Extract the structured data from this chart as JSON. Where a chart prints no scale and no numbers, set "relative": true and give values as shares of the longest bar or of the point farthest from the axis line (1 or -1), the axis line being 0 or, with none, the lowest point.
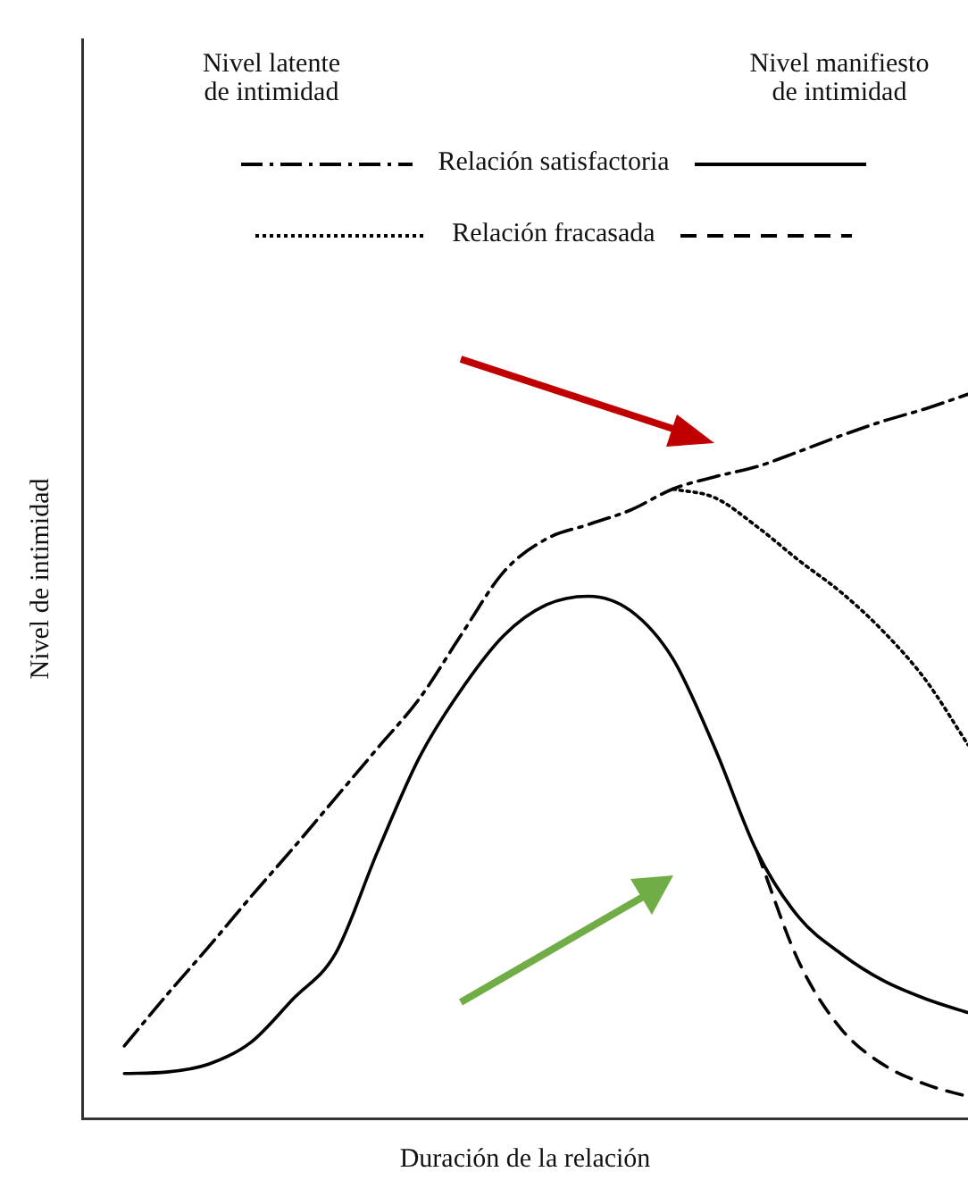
{
  "chart_data": {
    "type": "line",
    "xlabel": "Duración de la relación",
    "ylabel": "Nivel de intimidad",
    "relative": true,
    "legend": "top",
    "grid": false,
    "marker": "none",
    "annotations": [
      "Nivel latente\nde intimidad",
      "Nivel manifiesto\nde intimidad"
    ],
    "categories": [
      null,
      null,
      null,
      null,
      null,
      null,
      null,
      null,
      null,
      null,
      null,
      null,
      null,
      null,
      null,
      null,
      null,
      null,
      null,
      null,
      null,
      null
    ],
    "series": [
      {
        "name": "Relación satisfactoria",
        "color": "#000000",
        "line_style": "dashdot",
        "values": [
          null,
          0.1,
          0.17,
          0.237,
          0.306,
          0.373,
          0.442,
          0.511,
          0.58,
          0.669,
          0.755,
          0.8,
          0.82,
          0.84,
          0.869,
          0.886,
          0.9,
          0.921,
          0.943,
          0.963,
          0.98,
          1
        ]
      },
      {
        "name": "Relación fracasada",
        "color": "#000000",
        "line_style": "dotted",
        "values": [
          null,
          null,
          null,
          null,
          null,
          null,
          null,
          null,
          null,
          null,
          null,
          null,
          null,
          null,
          0.869,
          0.857,
          0.817,
          0.77,
          0.726,
          0.672,
          0.605,
          0.516
        ]
      },
      {
        "color": "#000000",
        "line_style": "solid",
        "values": [
          null,
          0.062,
          0.064,
          0.075,
          0.105,
          0.165,
          0.227,
          0.368,
          0.499,
          0.593,
          0.667,
          0.709,
          0.721,
          0.701,
          0.635,
          0.511,
          0.368,
          0.277,
          0.227,
          0.19,
          0.165,
          0.146
        ]
      },
      {
        "color": "#000000",
        "line_style": "dashed",
        "values": [
          null,
          null,
          null,
          null,
          null,
          null,
          null,
          null,
          null,
          null,
          null,
          null,
          null,
          null,
          null,
          null,
          0.368,
          0.215,
          0.123,
          0.074,
          0.047,
          0.03
        ]
      }
    ]
  }
}
